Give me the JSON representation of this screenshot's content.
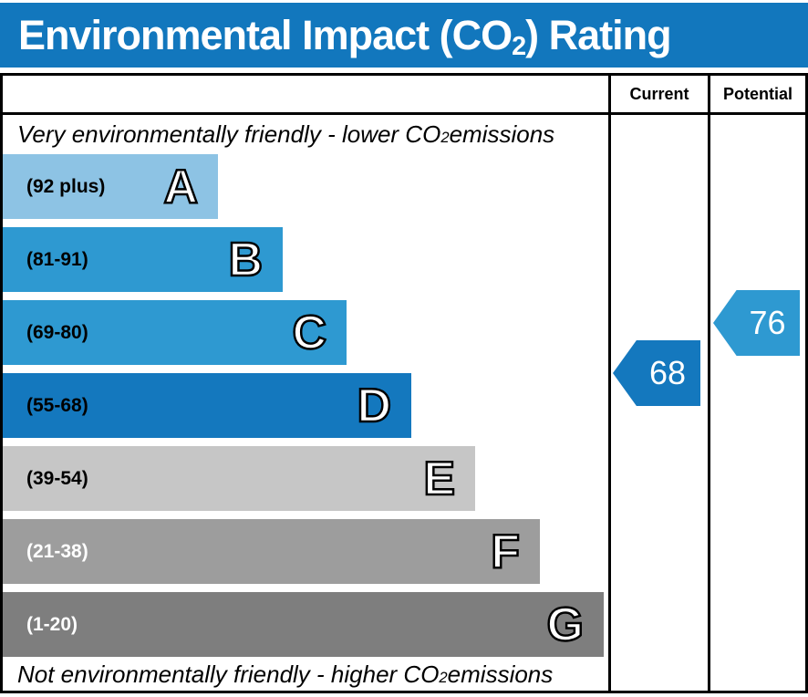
{
  "title": {
    "prefix": "Environmental Impact (CO",
    "sub": "2",
    "suffix": ") Rating"
  },
  "title_bar_color": "#1277bd",
  "header": {
    "current": "Current",
    "potential": "Potential"
  },
  "captions": {
    "top": {
      "prefix": "Very environmentally friendly - lower CO",
      "sub": "2",
      "suffix": " emissions"
    },
    "bottom": {
      "prefix": "Not environmentally friendly - higher CO",
      "sub": "2",
      "suffix": " emissions"
    }
  },
  "bands": [
    {
      "letter": "A",
      "range": "(92 plus)",
      "color": "#8dc3e4",
      "text_color": "#000000"
    },
    {
      "letter": "B",
      "range": "(81-91)",
      "color": "#2e99d1",
      "text_color": "#000000"
    },
    {
      "letter": "C",
      "range": "(69-80)",
      "color": "#2e99d1",
      "text_color": "#000000"
    },
    {
      "letter": "D",
      "range": "(55-68)",
      "color": "#1478be",
      "text_color": "#000000"
    },
    {
      "letter": "E",
      "range": "(39-54)",
      "color": "#c6c6c6",
      "text_color": "#000000"
    },
    {
      "letter": "F",
      "range": "(21-38)",
      "color": "#9d9d9d",
      "text_color": "#ffffff"
    },
    {
      "letter": "G",
      "range": "(1-20)",
      "color": "#7e7e7e",
      "text_color": "#ffffff"
    }
  ],
  "ratings": {
    "current": {
      "value": "68",
      "color": "#1478be",
      "band": "D"
    },
    "potential": {
      "value": "76",
      "color": "#2e99d1",
      "band": "C"
    }
  },
  "chart_data": {
    "type": "bar",
    "title": "Environmental Impact (CO2) Rating",
    "categories": [
      "A",
      "B",
      "C",
      "D",
      "E",
      "F",
      "G"
    ],
    "band_ranges": [
      "92 plus",
      "81-91",
      "69-80",
      "55-68",
      "39-54",
      "21-38",
      "1-20"
    ],
    "band_colors": [
      "#8dc3e4",
      "#2e99d1",
      "#2e99d1",
      "#1478be",
      "#c6c6c6",
      "#9d9d9d",
      "#7e7e7e"
    ],
    "scale": [
      1,
      100
    ],
    "bar_lengths_relative": [
      0.36,
      0.46,
      0.57,
      0.68,
      0.78,
      0.89,
      1.0
    ],
    "current": 68,
    "current_band": "D",
    "potential": 76,
    "potential_band": "C",
    "columns": [
      "Current",
      "Potential"
    ],
    "annotations": {
      "top": "Very environmentally friendly - lower CO2 emissions",
      "bottom": "Not environmentally friendly - higher CO2 emissions"
    },
    "legend_position": "none",
    "grid": false
  }
}
